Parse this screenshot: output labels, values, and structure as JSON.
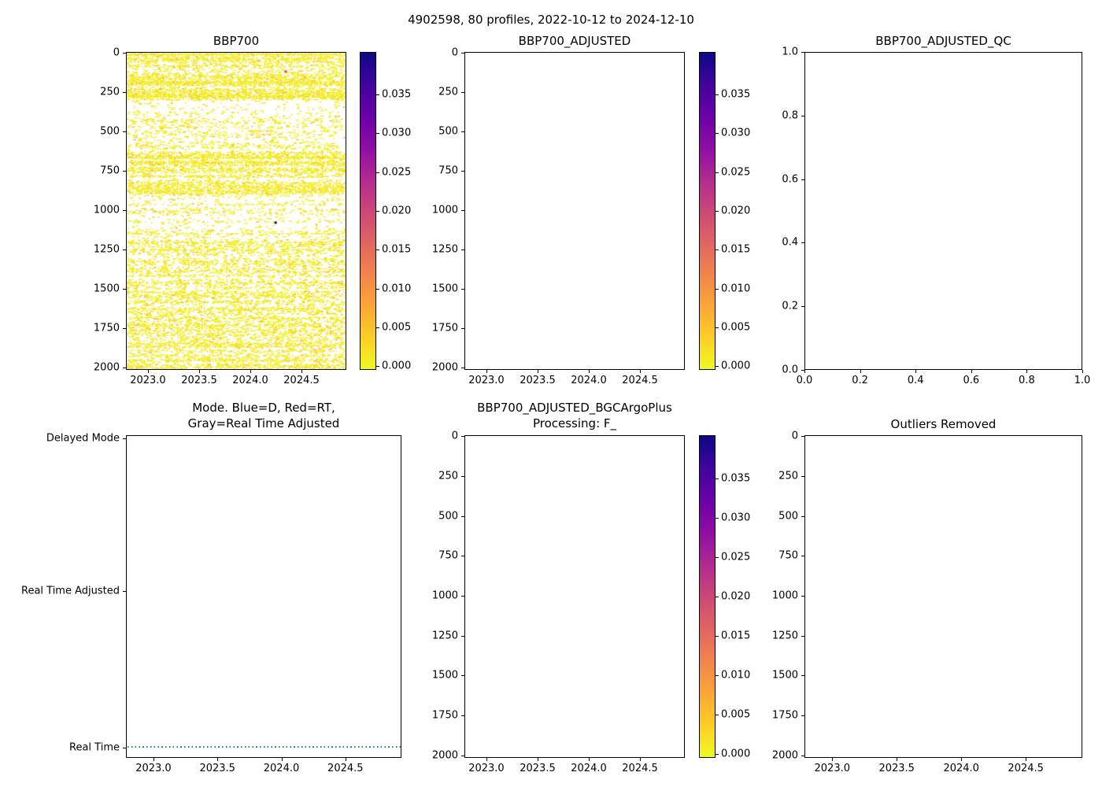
{
  "figure_title": "4902598, 80 profiles, 2022-10-12 to 2024-12-10",
  "colors": {
    "background": "#ffffff",
    "axis": "#000000",
    "text": "#000000",
    "mode_line_blue": "#1f77b4",
    "speckle_palette": [
      "#f1ee1f",
      "#f5d920",
      "#fcb826"
    ],
    "outlier_red": "#d5492c",
    "outlier_dark": "#0d0887",
    "colormap_stops": [
      "#f0f921",
      "#fcce25",
      "#fca636",
      "#f2844b",
      "#e16462",
      "#cc4778",
      "#b12a90",
      "#8f0da4",
      "#6a00a8",
      "#41049d",
      "#0d0887"
    ]
  },
  "chart_data": [
    {
      "id": "bbp700",
      "type": "scatter",
      "title": "BBP700",
      "x_range": [
        2022.785,
        2024.938
      ],
      "x_tick_values": [
        2023.0,
        2023.5,
        2024.0,
        2024.5
      ],
      "x_ticks": [
        "2023.0",
        "2023.5",
        "2024.0",
        "2024.5"
      ],
      "y_tick_values": [
        0,
        250,
        500,
        750,
        1000,
        1250,
        1500,
        1750,
        2000
      ],
      "y_ticks": [
        "0",
        "250",
        "500",
        "750",
        "1000",
        "1250",
        "1500",
        "1750",
        "2000"
      ],
      "y_axis": "depth (m), inverted, 0 at top to 2000 at bottom",
      "colorbar": {
        "tick_labels": [
          "0.000",
          "0.005",
          "0.010",
          "0.015",
          "0.020",
          "0.025",
          "0.030",
          "0.035"
        ],
        "tick_values": [
          0,
          0.005,
          0.01,
          0.015,
          0.02,
          0.025,
          0.03,
          0.035
        ],
        "vmin": -0.0005,
        "vmax": 0.0405,
        "colormap": "plasma reversed (low values yellow, high values dark navy)"
      },
      "n_profiles": 80,
      "description": "~80 profiles of BBP700 backscatter vs depth and time; nearly all values ~0 (yellow) forming horizontal streaky speckle: dense 0-300 m, sparse 300-620 m, moderate band 620-900 m, sparse 900-1150 m, moderate speckle 1150-2000 m; one red-orange outlier near surface and one dark outlier near 1080 m",
      "density_bands": [
        [
          0,
          60,
          0.85
        ],
        [
          60,
          230,
          0.62
        ],
        [
          230,
          300,
          0.72
        ],
        [
          300,
          430,
          0.14
        ],
        [
          430,
          620,
          0.22
        ],
        [
          620,
          900,
          0.5
        ],
        [
          900,
          1150,
          0.18
        ],
        [
          1150,
          1550,
          0.32
        ],
        [
          1550,
          1820,
          0.38
        ],
        [
          1820,
          2015,
          0.42
        ]
      ],
      "outliers": [
        {
          "x": 2024.35,
          "depth": 115,
          "color_key": "outlier_red"
        },
        {
          "x": 2024.25,
          "depth": 1080,
          "color_key": "outlier_dark"
        }
      ]
    },
    {
      "id": "bbp700_adjusted",
      "type": "scatter",
      "title": "BBP700_ADJUSTED",
      "empty": true,
      "x_range": [
        2022.785,
        2024.938
      ],
      "x_tick_values": [
        2023.0,
        2023.5,
        2024.0,
        2024.5
      ],
      "x_ticks": [
        "2023.0",
        "2023.5",
        "2024.0",
        "2024.5"
      ],
      "y_tick_values": [
        0,
        250,
        500,
        750,
        1000,
        1250,
        1500,
        1750,
        2000
      ],
      "y_ticks": [
        "0",
        "250",
        "500",
        "750",
        "1000",
        "1250",
        "1500",
        "1750",
        "2000"
      ],
      "colorbar": {
        "tick_labels": [
          "0.000",
          "0.005",
          "0.010",
          "0.015",
          "0.020",
          "0.025",
          "0.030",
          "0.035"
        ],
        "tick_values": [
          0,
          0.005,
          0.01,
          0.015,
          0.02,
          0.025,
          0.03,
          0.035
        ],
        "vmin": -0.0005,
        "vmax": 0.0405,
        "colormap": "plasma reversed (low values yellow, high values dark navy)"
      },
      "description": "empty axes, no adjusted data plotted"
    },
    {
      "id": "bbp700_adjusted_qc",
      "type": "scatter",
      "title": "BBP700_ADJUSTED_QC",
      "empty": true,
      "x_range": [
        0,
        1
      ],
      "x_tick_values": [
        0.0,
        0.2,
        0.4,
        0.6,
        0.8,
        1.0
      ],
      "x_ticks": [
        "0.0",
        "0.2",
        "0.4",
        "0.6",
        "0.8",
        "1.0"
      ],
      "y_tick_values": [
        0.0,
        0.2,
        0.4,
        0.6,
        0.8,
        1.0
      ],
      "y_ticks": [
        "0.0",
        "0.2",
        "0.4",
        "0.6",
        "0.8",
        "1.0"
      ],
      "description": "empty axes, no QC flags plotted"
    },
    {
      "id": "mode",
      "type": "line",
      "title_lines": [
        "Mode. Blue=D, Red=RT,",
        "Gray=Real Time Adjusted"
      ],
      "x_range": [
        2022.785,
        2024.938
      ],
      "x_tick_values": [
        2023.0,
        2023.5,
        2024.0,
        2024.5
      ],
      "x_ticks": [
        "2023.0",
        "2023.5",
        "2024.0",
        "2024.5"
      ],
      "y_categories": [
        "Delayed Mode",
        "Real Time Adjusted",
        "Real Time"
      ],
      "series": [
        {
          "name": "data mode",
          "value": "Real Time",
          "style": "dotted",
          "color_key": "mode_line_blue",
          "x_start": 2022.8,
          "x_end": 2024.93
        }
      ],
      "description": "all 80 profiles are Real Time mode: dotted blue line along the Real Time level"
    },
    {
      "id": "bgcargoplus",
      "type": "scatter",
      "title_lines": [
        "BBP700_ADJUSTED_BGCArgoPlus",
        "Processing: F_"
      ],
      "empty": true,
      "x_range": [
        2022.785,
        2024.938
      ],
      "x_tick_values": [
        2023.0,
        2023.5,
        2024.0,
        2024.5
      ],
      "x_ticks": [
        "2023.0",
        "2023.5",
        "2024.0",
        "2024.5"
      ],
      "y_tick_values": [
        0,
        250,
        500,
        750,
        1000,
        1250,
        1500,
        1750,
        2000
      ],
      "y_ticks": [
        "0",
        "250",
        "500",
        "750",
        "1000",
        "1250",
        "1500",
        "1750",
        "2000"
      ],
      "colorbar": {
        "tick_labels": [
          "0.000",
          "0.005",
          "0.010",
          "0.015",
          "0.020",
          "0.025",
          "0.030",
          "0.035"
        ],
        "tick_values": [
          0,
          0.005,
          0.01,
          0.015,
          0.02,
          0.025,
          0.03,
          0.035
        ],
        "vmin": -0.0005,
        "vmax": 0.0405,
        "colormap": "plasma reversed (low values yellow, high values dark navy)"
      },
      "description": "empty axes, no BGCArgoPlus-processed data plotted"
    },
    {
      "id": "outliers_removed",
      "type": "scatter",
      "title": "Outliers Removed",
      "empty": true,
      "x_range": [
        2022.785,
        2024.938
      ],
      "x_tick_values": [
        2023.0,
        2023.5,
        2024.0,
        2024.5
      ],
      "x_ticks": [
        "2023.0",
        "2023.5",
        "2024.0",
        "2024.5"
      ],
      "y_tick_values": [
        0,
        250,
        500,
        750,
        1000,
        1250,
        1500,
        1750,
        2000
      ],
      "y_ticks": [
        "0",
        "250",
        "500",
        "750",
        "1000",
        "1250",
        "1500",
        "1750",
        "2000"
      ],
      "description": "empty axes, no outlier-removed data plotted"
    }
  ]
}
